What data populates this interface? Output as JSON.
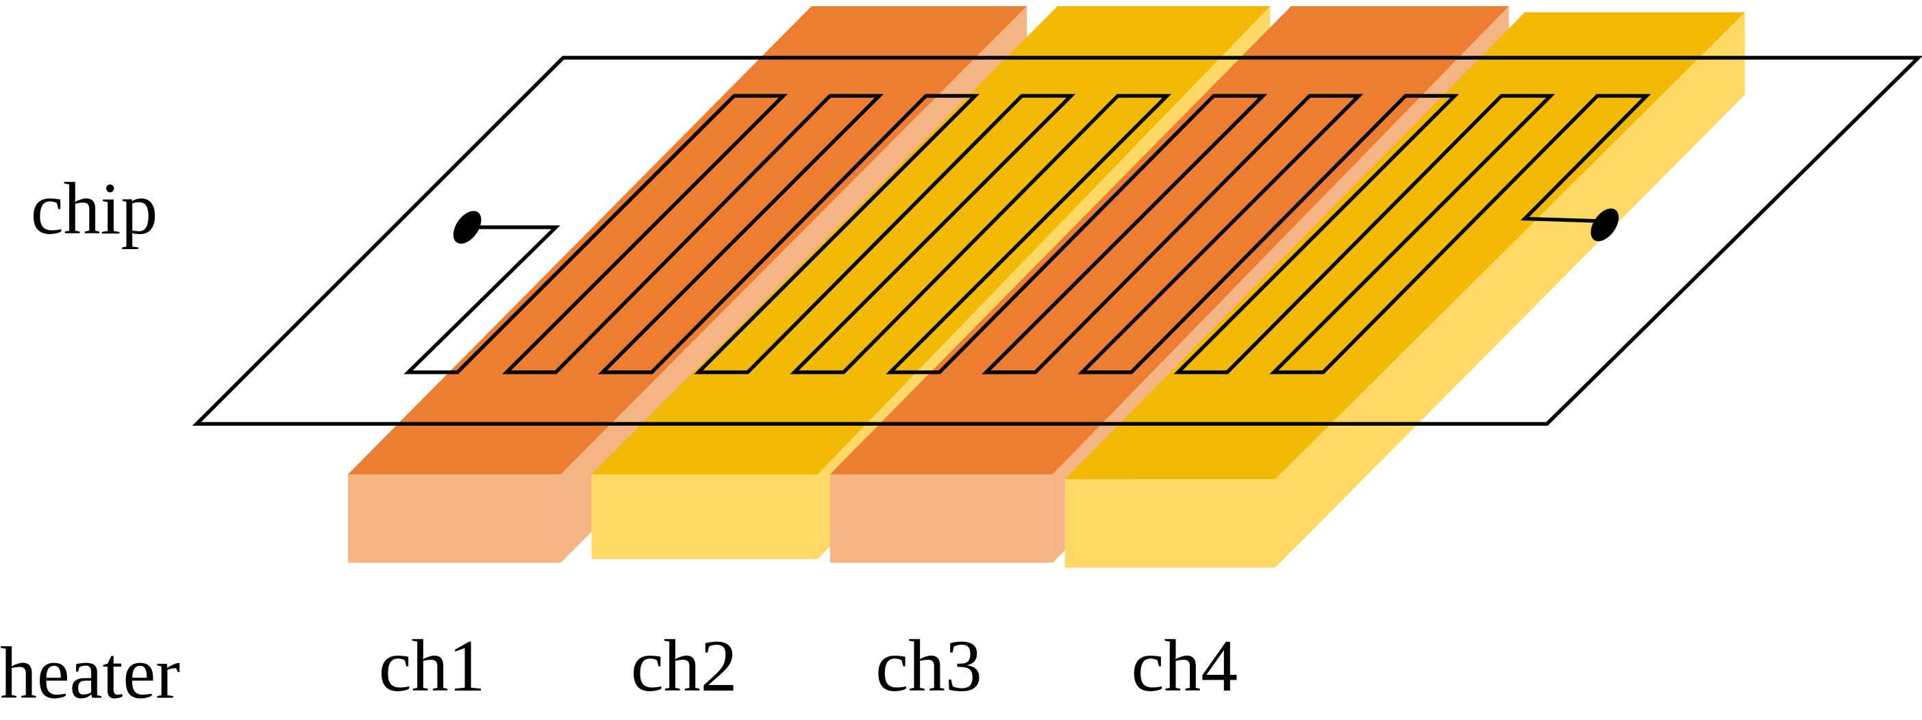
{
  "labels": {
    "chip": "chip",
    "heater": "heater"
  },
  "channels": [
    "ch1",
    "ch2",
    "ch3",
    "ch4"
  ]
}
